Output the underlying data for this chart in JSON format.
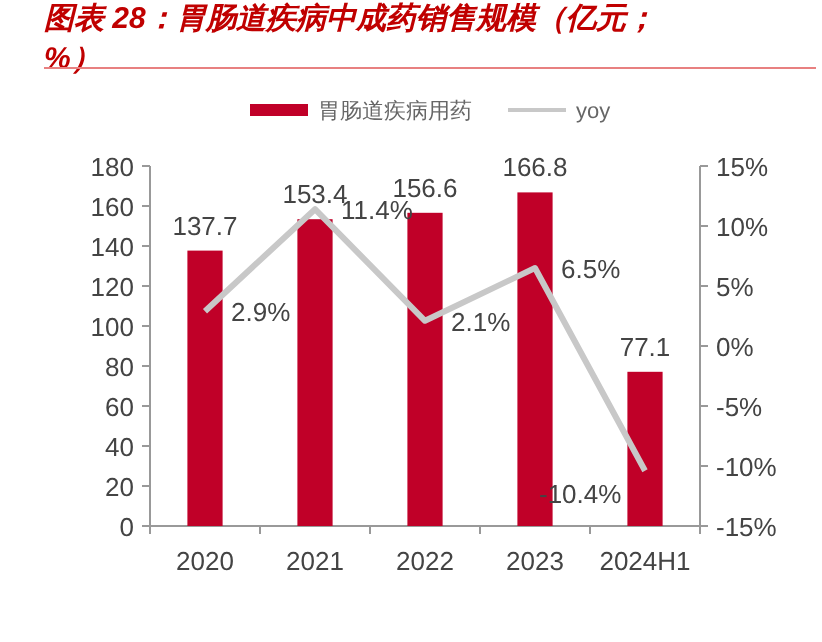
{
  "chart_data": {
    "type": "bar",
    "title": "图表 28：胃肠道疾病中成药销售规模（亿元；%）",
    "categories": [
      "2020",
      "2021",
      "2022",
      "2023",
      "2024H1"
    ],
    "series": [
      {
        "name": "胃肠道疾病用药",
        "color": "#c00028",
        "values": [
          137.7,
          153.4,
          156.6,
          166.8,
          77.1
        ],
        "value_labels": [
          "137.7",
          "153.4",
          "156.6",
          "166.8",
          "77.1"
        ]
      },
      {
        "name": "yoy",
        "type": "line",
        "axis": "y2",
        "color": "#c8c8c8",
        "values": [
          2.9,
          11.4,
          2.1,
          6.5,
          -10.4
        ],
        "value_labels": [
          "2.9%",
          "11.4%",
          "2.1%",
          "6.5%",
          "-10.4%"
        ]
      }
    ],
    "ylim": [
      0,
      180
    ],
    "yticks": [
      0,
      20,
      40,
      60,
      80,
      100,
      120,
      140,
      160,
      180
    ],
    "y2lim": [
      -15,
      15
    ],
    "y2ticks": [
      {
        "value": -15,
        "label": "-15%"
      },
      {
        "value": -10,
        "label": "-10%"
      },
      {
        "value": -5,
        "label": "-5%"
      },
      {
        "value": 0,
        "label": "0%"
      },
      {
        "value": 5,
        "label": "5%"
      },
      {
        "value": 10,
        "label": "10%"
      },
      {
        "value": 15,
        "label": "15%"
      }
    ],
    "legend": "top",
    "grid": false
  }
}
